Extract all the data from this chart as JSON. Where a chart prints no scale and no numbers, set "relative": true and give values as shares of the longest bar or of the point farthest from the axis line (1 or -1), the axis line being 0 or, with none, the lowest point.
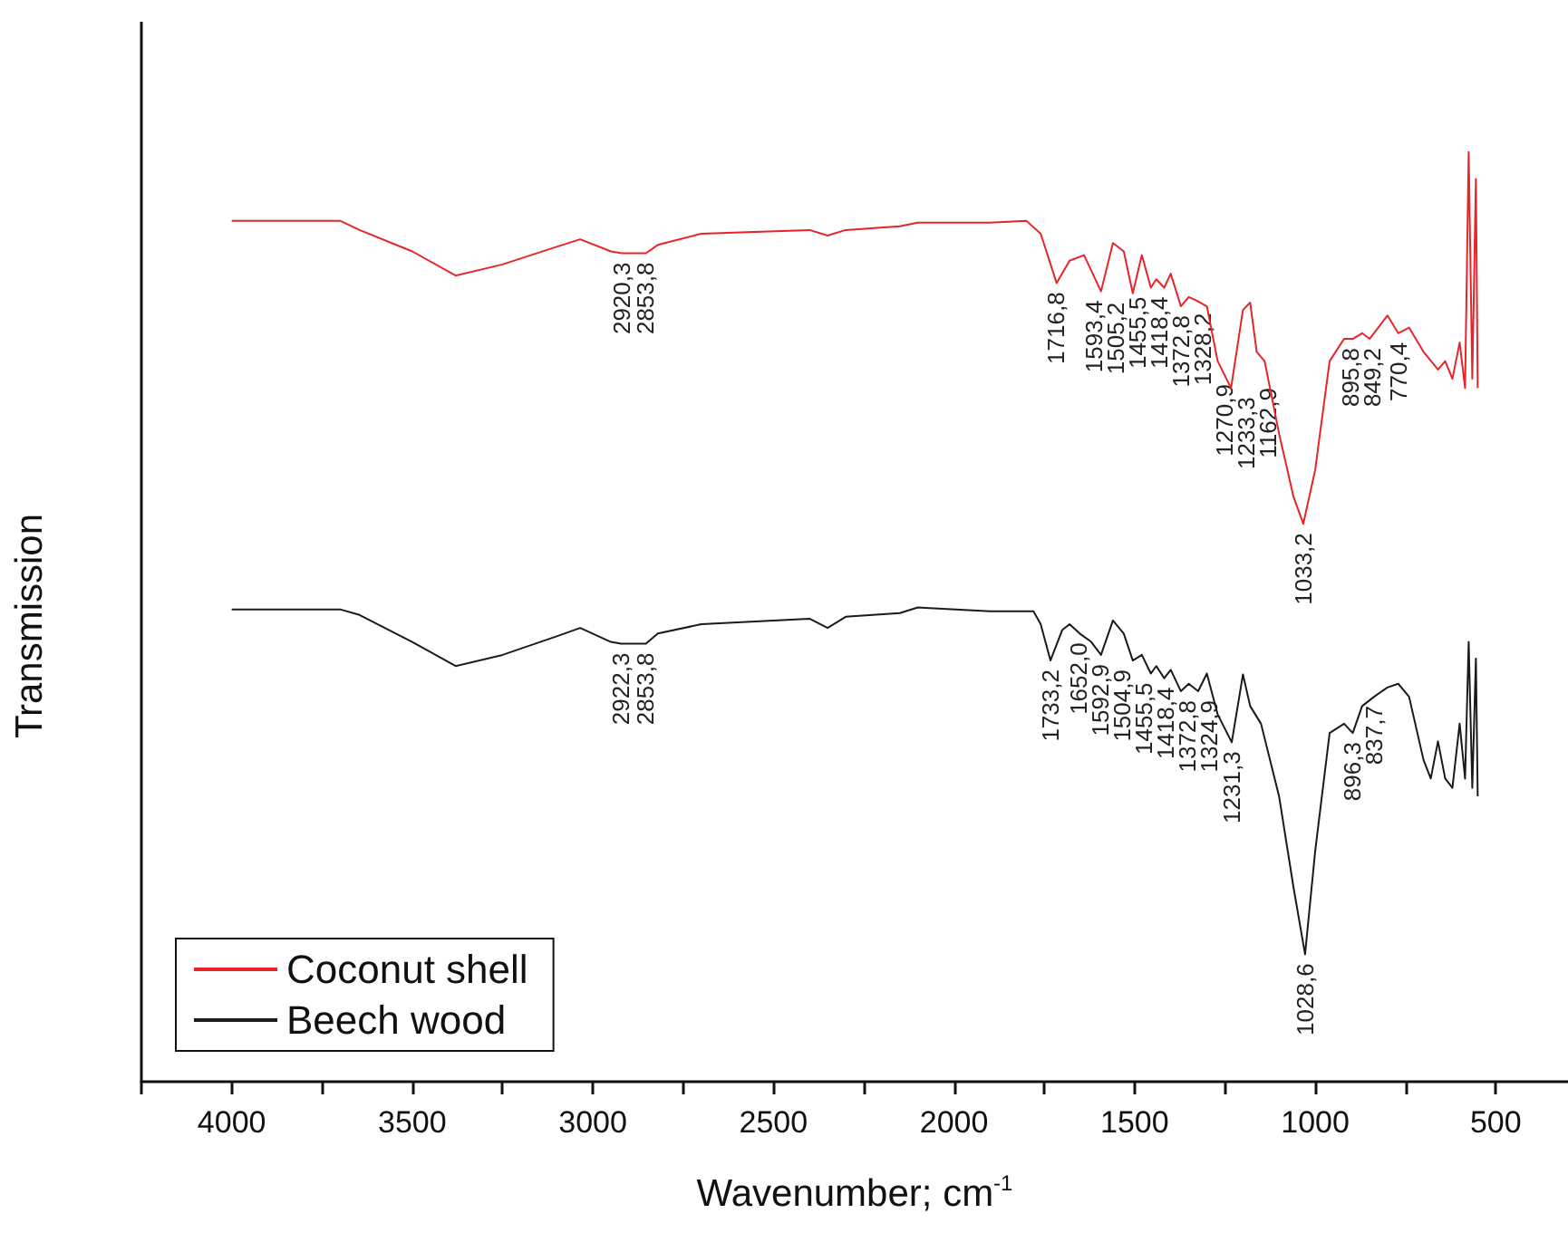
{
  "chart_data": {
    "type": "line",
    "relative": true,
    "xlabel": "Wavenumber; cm$^{-1}$",
    "ylabel": "Transmission",
    "xlim": [
      4250,
      300
    ],
    "xticks": [
      {
        "value": 4250,
        "label": null
      },
      4000,
      {
        "value": 3750,
        "label": null
      },
      3500,
      {
        "value": 3250,
        "label": null
      },
      3000,
      {
        "value": 2750,
        "label": null
      },
      2500,
      {
        "value": 2250,
        "label": null
      },
      2000,
      {
        "value": 1750,
        "label": null
      },
      1500,
      {
        "value": 1250,
        "label": null
      },
      1000,
      {
        "value": 750,
        "label": null
      },
      500
    ],
    "legend": "bottom left",
    "grid": false,
    "marker": "none",
    "line_style": "solid",
    "series": [
      {
        "name": "Coconut shell",
        "color": "#e8242a",
        "x": [
          4000,
          3700,
          3646,
          3500,
          3380,
          3250,
          3100,
          3035,
          2950,
          2920,
          2853,
          2820,
          2700,
          2400,
          2350,
          2300,
          2150,
          2100,
          1900,
          1800,
          1760,
          1716,
          1680,
          1640,
          1593,
          1560,
          1530,
          1505,
          1480,
          1455,
          1440,
          1418,
          1400,
          1372,
          1350,
          1328,
          1300,
          1270,
          1233,
          1200,
          1180,
          1162,
          1140,
          1100,
          1060,
          1033,
          1000,
          960,
          920,
          895,
          870,
          849,
          800,
          770,
          740,
          700,
          660,
          640,
          620,
          600,
          585,
          575,
          565,
          555,
          550
        ],
        "values": [
          0.926,
          0.926,
          0.916,
          0.893,
          0.867,
          0.879,
          0.898,
          0.906,
          0.893,
          0.891,
          0.891,
          0.9,
          0.912,
          0.916,
          0.91,
          0.916,
          0.92,
          0.924,
          0.924,
          0.926,
          0.912,
          0.859,
          0.883,
          0.889,
          0.85,
          0.902,
          0.893,
          0.848,
          0.889,
          0.854,
          0.863,
          0.854,
          0.869,
          0.834,
          0.844,
          0.84,
          0.834,
          0.775,
          0.746,
          0.83,
          0.838,
          0.785,
          0.775,
          0.697,
          0.629,
          0.6,
          0.658,
          0.775,
          0.799,
          0.799,
          0.805,
          0.799,
          0.824,
          0.805,
          0.811,
          0.785,
          0.766,
          0.775,
          0.756,
          0.795,
          0.746,
          1.0,
          0.756,
          0.971,
          0.746
        ]
      },
      {
        "name": "Beech wood",
        "color": "#1a1a1a",
        "x": [
          4000,
          3700,
          3646,
          3500,
          3380,
          3250,
          3100,
          3035,
          2950,
          2922,
          2853,
          2820,
          2700,
          2400,
          2350,
          2300,
          2150,
          2100,
          1900,
          1780,
          1760,
          1733,
          1700,
          1680,
          1652,
          1620,
          1593,
          1560,
          1530,
          1505,
          1480,
          1455,
          1440,
          1418,
          1400,
          1372,
          1350,
          1324,
          1300,
          1270,
          1231,
          1200,
          1180,
          1150,
          1100,
          1060,
          1028,
          1000,
          960,
          920,
          896,
          870,
          837,
          800,
          770,
          740,
          700,
          680,
          660,
          640,
          620,
          600,
          585,
          575,
          565,
          555,
          550
        ],
        "values": [
          0.508,
          0.508,
          0.502,
          0.473,
          0.447,
          0.459,
          0.479,
          0.488,
          0.473,
          0.471,
          0.471,
          0.482,
          0.492,
          0.498,
          0.488,
          0.5,
          0.504,
          0.51,
          0.506,
          0.506,
          0.492,
          0.453,
          0.486,
          0.492,
          0.482,
          0.473,
          0.459,
          0.496,
          0.482,
          0.453,
          0.459,
          0.439,
          0.447,
          0.434,
          0.443,
          0.42,
          0.428,
          0.42,
          0.439,
          0.395,
          0.365,
          0.438,
          0.404,
          0.385,
          0.307,
          0.209,
          0.137,
          0.248,
          0.375,
          0.385,
          0.375,
          0.404,
          0.414,
          0.424,
          0.428,
          0.414,
          0.346,
          0.326,
          0.366,
          0.326,
          0.316,
          0.385,
          0.326,
          0.473,
          0.316,
          0.455,
          0.307
        ]
      }
    ],
    "annotations": [
      {
        "text": "2920,3",
        "x": 2920.3,
        "y": 0.891
      },
      {
        "text": "2853,8",
        "x": 2853.8,
        "y": 0.891
      },
      {
        "text": "1716,8",
        "x": 1716.8,
        "y": 0.859
      },
      {
        "text": "1593,4",
        "x": 1593.4,
        "y": 0.85
      },
      {
        "text": "1505,2",
        "x": 1505.2,
        "y": 0.848
      },
      {
        "text": "1455,5",
        "x": 1455.5,
        "y": 0.854
      },
      {
        "text": "1418,4",
        "x": 1418.4,
        "y": 0.854
      },
      {
        "text": "1372,8",
        "x": 1372.8,
        "y": 0.834
      },
      {
        "text": "1328,2",
        "x": 1328.2,
        "y": 0.84
      },
      {
        "text": "1270,9",
        "x": 1270.9,
        "y": 0.775
      },
      {
        "text": "1233,3",
        "x": 1233.3,
        "y": 0.746
      },
      {
        "text": "1162,9",
        "x": 1162.9,
        "y": 0.785
      },
      {
        "text": "1033,2",
        "x": 1033.2,
        "y": 0.6
      },
      {
        "text": "895,8",
        "x": 895.8,
        "y": 0.799
      },
      {
        "text": "849,2",
        "x": 849.2,
        "y": 0.799
      },
      {
        "text": "770,4",
        "x": 770.4,
        "y": 0.805
      },
      {
        "text": "2922,3",
        "x": 2922.3,
        "y": 0.471
      },
      {
        "text": "2853,8",
        "x": 2853.8,
        "y": 0.471
      },
      {
        "text": "1733,2",
        "x": 1733.2,
        "y": 0.453
      },
      {
        "text": "1652,0",
        "x": 1652.0,
        "y": 0.482
      },
      {
        "text": "1592,9",
        "x": 1592.9,
        "y": 0.459
      },
      {
        "text": "1504,9",
        "x": 1504.9,
        "y": 0.453
      },
      {
        "text": "1455,5",
        "x": 1455.5,
        "y": 0.439
      },
      {
        "text": "1418,4",
        "x": 1418.4,
        "y": 0.434
      },
      {
        "text": "1372,8",
        "x": 1372.8,
        "y": 0.42
      },
      {
        "text": "1324,9",
        "x": 1324.9,
        "y": 0.42
      },
      {
        "text": "1231,3",
        "x": 1231.3,
        "y": 0.365
      },
      {
        "text": "1028,6",
        "x": 1028.6,
        "y": 0.137
      },
      {
        "text": "896,3",
        "x": 896.3,
        "y": 0.375
      },
      {
        "text": "837,7",
        "x": 837.7,
        "y": 0.414
      }
    ]
  }
}
